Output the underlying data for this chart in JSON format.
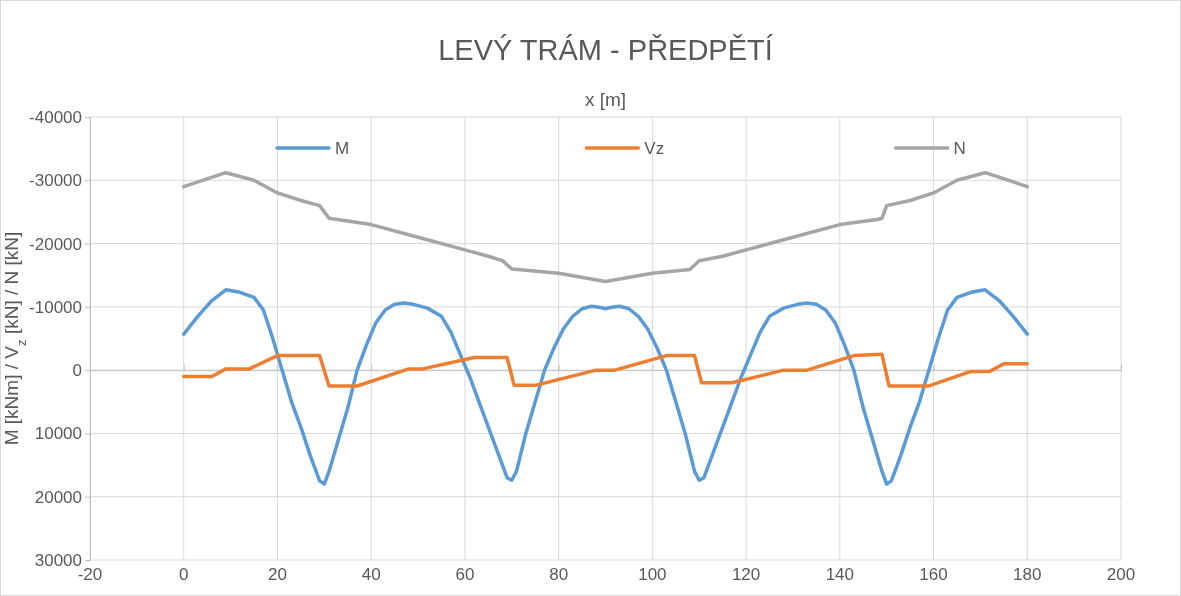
{
  "chart_data": {
    "type": "line",
    "title": "LEVÝ TRÁM - PŘEDPĚTÍ",
    "xlabel": "x [m]",
    "ylabel": "M [kNm] / V$_{z}$ [kN] / N [kN]",
    "xlim": [
      -20,
      200
    ],
    "xticks": [
      -20,
      0,
      20,
      40,
      60,
      80,
      100,
      120,
      140,
      160,
      180,
      200
    ],
    "ylim": [
      30000,
      -40000
    ],
    "yticks": [
      -40000,
      -30000,
      -20000,
      -10000,
      0,
      10000,
      20000,
      30000
    ],
    "grid": true,
    "legend": "top",
    "marker": "none",
    "line_style": "solid",
    "series": [
      {
        "name": "M",
        "color": "#5b9bd5",
        "x": [
          0,
          3,
          6,
          9,
          12,
          15,
          17,
          19,
          21,
          23,
          25,
          27,
          29,
          30,
          31,
          33,
          35,
          37,
          39,
          41,
          43,
          45,
          47,
          49,
          52,
          55,
          57,
          59,
          61,
          63,
          65,
          67,
          69,
          70,
          71,
          73,
          75,
          77,
          79,
          81,
          83,
          85,
          87,
          89,
          90,
          91,
          93,
          95,
          97,
          99,
          101,
          103,
          105,
          107,
          109,
          110,
          111,
          113,
          115,
          117,
          119,
          121,
          123,
          125,
          128,
          131,
          133,
          135,
          137,
          139,
          141,
          143,
          145,
          147,
          149,
          150,
          151,
          153,
          155,
          157,
          159,
          161,
          163,
          165,
          168,
          171,
          174,
          177,
          180
        ],
        "values": [
          -5700,
          -8500,
          -11000,
          -12700,
          -12300,
          -11500,
          -9500,
          -5000,
          0,
          5000,
          9000,
          13500,
          17500,
          18000,
          16000,
          11000,
          6000,
          0,
          -4000,
          -7500,
          -9500,
          -10400,
          -10600,
          -10400,
          -9800,
          -8500,
          -6000,
          -2500,
          1000,
          5000,
          9000,
          13000,
          17000,
          17400,
          16000,
          10000,
          5000,
          0,
          -3500,
          -6500,
          -8500,
          -9700,
          -10100,
          -9900,
          -9700,
          -9900,
          -10100,
          -9700,
          -8500,
          -6500,
          -3500,
          0,
          5000,
          10000,
          16000,
          17400,
          17000,
          13000,
          9000,
          5000,
          1000,
          -2500,
          -6000,
          -8500,
          -9800,
          -10400,
          -10600,
          -10400,
          -9500,
          -7500,
          -4000,
          0,
          6000,
          11000,
          16000,
          18000,
          17500,
          13500,
          9000,
          5000,
          0,
          -5000,
          -9500,
          -11500,
          -12300,
          -12700,
          -11000,
          -8500,
          -5700
        ]
      },
      {
        "name": "Vz",
        "color": "#ed7d31",
        "x": [
          0,
          6,
          9,
          14,
          20,
          29,
          31,
          37,
          48,
          51,
          62,
          69,
          70.5,
          75,
          88,
          92,
          103,
          109,
          110.5,
          115,
          117,
          128,
          133,
          143,
          149,
          150.5,
          159,
          168,
          172,
          175,
          180
        ],
        "values": [
          1000,
          1000,
          -200,
          -200,
          -2300,
          -2300,
          2500,
          2500,
          -200,
          -200,
          -2000,
          -2000,
          2400,
          2400,
          0,
          0,
          -2300,
          -2300,
          2000,
          2000,
          2000,
          0,
          0,
          -2300,
          -2500,
          2500,
          2500,
          200,
          200,
          -1000,
          -1000
        ]
      },
      {
        "name": "N",
        "color": "#a5a5a5",
        "x": [
          0,
          4,
          9,
          15,
          20,
          25,
          29,
          31,
          40,
          50,
          60,
          65,
          68,
          70,
          80,
          90,
          100,
          108,
          110,
          115,
          120,
          130,
          140,
          148,
          149,
          150,
          155,
          160,
          165,
          171,
          176,
          180
        ],
        "values": [
          -29000,
          -30000,
          -31200,
          -30000,
          -28000,
          -26800,
          -26000,
          -24000,
          -23000,
          -21000,
          -19000,
          -18000,
          -17300,
          -16000,
          -15300,
          -14000,
          -15300,
          -15900,
          -17300,
          -18000,
          -19000,
          -21000,
          -23000,
          -23800,
          -24000,
          -26000,
          -26800,
          -28000,
          -30000,
          -31200,
          -30000,
          -29000
        ]
      }
    ]
  }
}
